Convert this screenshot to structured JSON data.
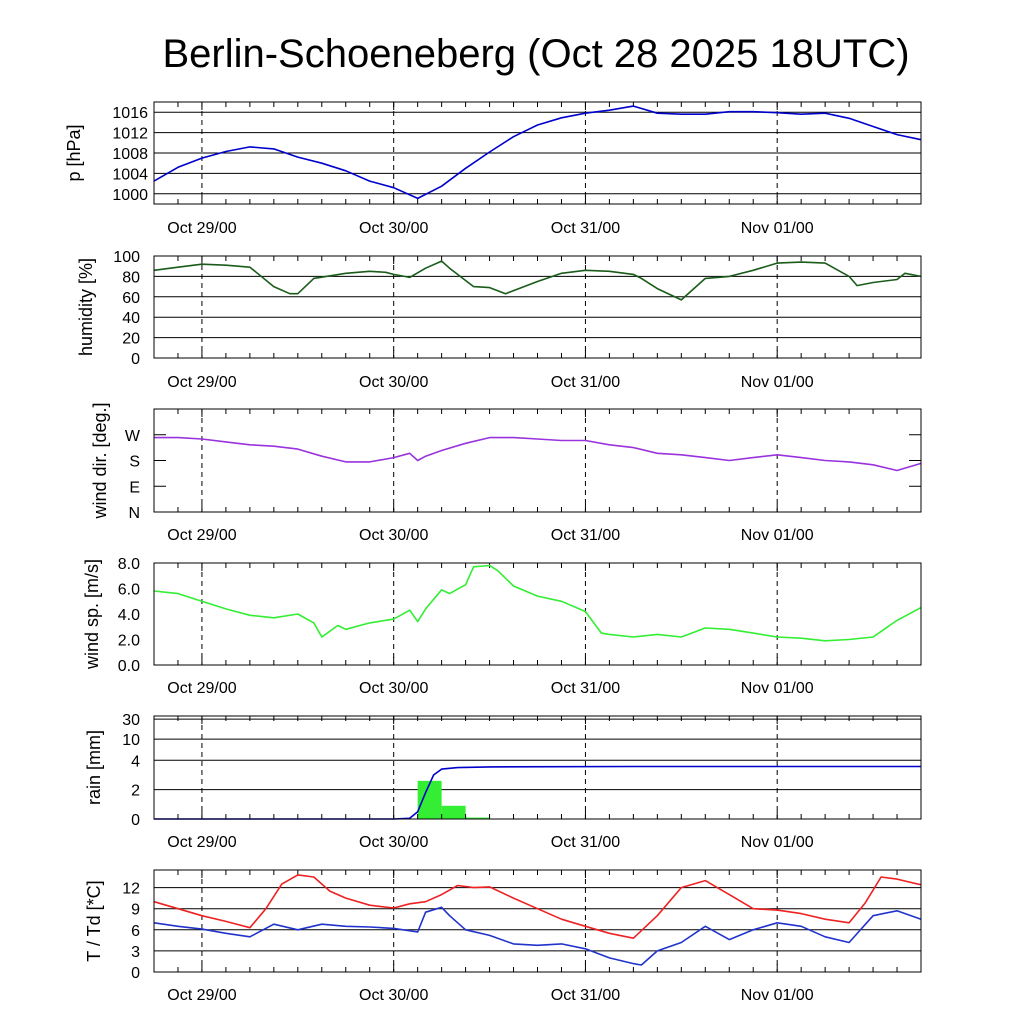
{
  "title": "Berlin-Schoeneberg (Oct 28 2025 18UTC)",
  "chart_data": {
    "type": "line",
    "time_axis": {
      "unit": "hours since Oct 28 18UTC",
      "range": [
        0,
        96
      ],
      "major_ticks": [
        6,
        30,
        54,
        78
      ],
      "major_labels": [
        "Oct 29/00",
        "Oct 30/00",
        "Oct 31/00",
        "Nov 01/00"
      ],
      "minor_step": 3
    },
    "panels": [
      {
        "id": "pressure",
        "ylabel": "p [hPa]",
        "ylim": [
          998,
          1018
        ],
        "ticks": [
          {
            "v": 1000,
            "label": "1000"
          },
          {
            "v": 1004,
            "label": "1004"
          },
          {
            "v": 1008,
            "label": "1008"
          },
          {
            "v": 1012,
            "label": "1012"
          },
          {
            "v": 1016,
            "label": "1016"
          }
        ],
        "series": [
          {
            "name": "pressure",
            "color": "#0000cc",
            "x": [
              0,
              3,
              6,
              9,
              12,
              15,
              18,
              21,
              24,
              27,
              30,
              33,
              36,
              39,
              42,
              45,
              48,
              51,
              54,
              57,
              60,
              63,
              66,
              69,
              72,
              75,
              78,
              81,
              84,
              87,
              90,
              93,
              96
            ],
            "values": [
              1002.5,
              1005.2,
              1007,
              1008.3,
              1009.2,
              1008.8,
              1007.2,
              1006,
              1004.5,
              1002.5,
              1001.2,
              999.1,
              1001.5,
              1005,
              1008.2,
              1011.2,
              1013.5,
              1014.9,
              1015.8,
              1016.4,
              1017.2,
              1015.8,
              1015.6,
              1015.6,
              1016.1,
              1016.1,
              1015.9,
              1015.6,
              1015.8,
              1014.8,
              1013.2,
              1011.6,
              1010.6
            ]
          }
        ]
      },
      {
        "id": "humidity",
        "ylabel": "humidity [%]",
        "ylim": [
          0,
          100
        ],
        "ticks": [
          {
            "v": 0,
            "label": "0"
          },
          {
            "v": 20,
            "label": "20"
          },
          {
            "v": 40,
            "label": "40"
          },
          {
            "v": 60,
            "label": "60"
          },
          {
            "v": 80,
            "label": "80"
          },
          {
            "v": 100,
            "label": "100"
          }
        ],
        "series": [
          {
            "name": "humidity",
            "color": "#1a5c1a",
            "x": [
              0,
              3,
              6,
              9,
              12,
              15,
              17,
              18,
              20,
              24,
              27,
              29,
              30,
              32,
              34,
              36,
              37,
              40,
              42,
              44,
              48,
              51,
              54,
              57,
              60,
              61,
              63,
              66,
              69,
              72,
              75,
              78,
              81,
              84,
              87,
              88,
              90,
              93,
              94,
              96
            ],
            "values": [
              86,
              89,
              92,
              91,
              89,
              70,
              63,
              63,
              78,
              83,
              85,
              84,
              82,
              79,
              88,
              95,
              88,
              70,
              69,
              63,
              75,
              83,
              86,
              85,
              82,
              78,
              68,
              57,
              78,
              80,
              86,
              93,
              94,
              93,
              80,
              71,
              74,
              77,
              83,
              80
            ]
          }
        ]
      },
      {
        "id": "wind_direction",
        "ylabel": "wind dir. [deg.]",
        "ylim": [
          0,
          360
        ],
        "ticks": [
          {
            "v": 0,
            "label": "N"
          },
          {
            "v": 90,
            "label": "E"
          },
          {
            "v": 180,
            "label": "S"
          },
          {
            "v": 270,
            "label": "W"
          }
        ],
        "series": [
          {
            "name": "wind direction",
            "color": "#9933dd",
            "x": [
              0,
              3,
              6,
              9,
              12,
              15,
              18,
              21,
              24,
              27,
              30,
              32,
              33,
              34,
              36,
              39,
              42,
              45,
              48,
              51,
              54,
              57,
              60,
              63,
              66,
              69,
              72,
              75,
              78,
              81,
              84,
              87,
              90,
              93,
              96
            ],
            "values": [
              260,
              260,
              255,
              245,
              235,
              230,
              220,
              195,
              175,
              175,
              190,
              205,
              180,
              195,
              215,
              240,
              260,
              260,
              255,
              250,
              250,
              235,
              225,
              205,
              200,
              190,
              180,
              190,
              200,
              190,
              180,
              175,
              165,
              145,
              170
            ]
          }
        ]
      },
      {
        "id": "wind_speed",
        "ylabel": "wind sp. [m/s]",
        "ylim": [
          0,
          8.0
        ],
        "ticks": [
          {
            "v": 0,
            "label": "0.0"
          },
          {
            "v": 2,
            "label": "2.0"
          },
          {
            "v": 4,
            "label": "4.0"
          },
          {
            "v": 6,
            "label": "6.0"
          },
          {
            "v": 8,
            "label": "8.0"
          }
        ],
        "series": [
          {
            "name": "wind speed",
            "color": "#33ee33",
            "x": [
              0,
              3,
              6,
              9,
              12,
              15,
              18,
              20,
              21,
              23,
              24,
              27,
              30,
              32,
              33,
              34,
              36,
              37,
              39,
              40,
              42,
              43,
              45,
              48,
              51,
              54,
              56,
              57,
              60,
              63,
              66,
              69,
              72,
              75,
              78,
              81,
              84,
              87,
              90,
              93,
              96
            ],
            "values": [
              5.8,
              5.6,
              5.0,
              4.4,
              3.9,
              3.7,
              4.0,
              3.3,
              2.2,
              3.1,
              2.8,
              3.3,
              3.6,
              4.3,
              3.4,
              4.4,
              5.9,
              5.6,
              6.3,
              7.7,
              7.8,
              7.4,
              6.2,
              5.4,
              5.0,
              4.2,
              2.5,
              2.4,
              2.2,
              2.4,
              2.2,
              2.9,
              2.8,
              2.5,
              2.2,
              2.1,
              1.9,
              2.0,
              2.2,
              3.5,
              4.5
            ]
          }
        ]
      },
      {
        "id": "rain",
        "ylabel": "rain [mm]",
        "ticks": [
          {
            "v": 0,
            "label": "0"
          },
          {
            "v": 2,
            "label": "2"
          },
          {
            "v": 4,
            "label": "4"
          },
          {
            "v": 10,
            "label": "10"
          },
          {
            "v": 30,
            "label": "30"
          }
        ],
        "scale": "nonlinear (0-4 linear, 4-30 logarithmic)",
        "bars": {
          "name": "hourly rain",
          "color": "#33ee33",
          "x_start": [
            33,
            36,
            39
          ],
          "x_end": [
            36,
            39,
            42
          ],
          "values": [
            2.6,
            0.9,
            0.1
          ]
        },
        "series": [
          {
            "name": "accumulated rain",
            "color": "#0000cc",
            "x": [
              0,
              30,
              32,
              33,
              34,
              35,
              36,
              38,
              42,
              60,
              96
            ],
            "values": [
              0,
              0,
              0.05,
              0.5,
              1.8,
              3.0,
              3.4,
              3.5,
              3.55,
              3.58,
              3.58
            ]
          }
        ]
      },
      {
        "id": "temperature",
        "ylabel": "T / Td [*C]",
        "ylim": [
          0,
          14.5
        ],
        "ticks": [
          {
            "v": 0,
            "label": "0"
          },
          {
            "v": 3,
            "label": "3"
          },
          {
            "v": 6,
            "label": "6"
          },
          {
            "v": 9,
            "label": "9"
          },
          {
            "v": 12,
            "label": "12"
          }
        ],
        "series": [
          {
            "name": "T",
            "color": "#ee2222",
            "x": [
              0,
              3,
              6,
              9,
              12,
              14,
              16,
              18,
              20,
              22,
              24,
              27,
              30,
              32,
              34,
              36,
              38,
              40,
              42,
              45,
              48,
              51,
              54,
              57,
              60,
              63,
              66,
              69,
              72,
              75,
              78,
              81,
              84,
              87,
              89,
              91,
              93,
              96
            ],
            "values": [
              10,
              9,
              8,
              7.2,
              6.3,
              9,
              12.5,
              13.8,
              13.5,
              11.5,
              10.5,
              9.5,
              9.1,
              9.7,
              10,
              11,
              12.3,
              12,
              12.1,
              10.5,
              9,
              7.5,
              6.5,
              5.5,
              4.8,
              8,
              12,
              13,
              11,
              9,
              8.8,
              8.3,
              7.5,
              7,
              9.8,
              13.5,
              13.2,
              12.4
            ]
          },
          {
            "name": "Td",
            "color": "#2233cc",
            "x": [
              0,
              3,
              6,
              9,
              12,
              15,
              18,
              21,
              24,
              27,
              30,
              33,
              34,
              36,
              37,
              39,
              42,
              45,
              48,
              51,
              54,
              57,
              60,
              61,
              63,
              66,
              69,
              72,
              75,
              78,
              81,
              84,
              87,
              90,
              93,
              96
            ],
            "values": [
              7,
              6.5,
              6.1,
              5.5,
              5.0,
              6.8,
              6.0,
              6.8,
              6.5,
              6.4,
              6.2,
              5.7,
              8.5,
              9.2,
              8.0,
              6.0,
              5.2,
              4.0,
              3.8,
              4.0,
              3.3,
              2.0,
              1.2,
              1.0,
              3.0,
              4.2,
              6.5,
              4.6,
              6.0,
              7.0,
              6.5,
              5.0,
              4.2,
              8.0,
              8.7,
              7.5
            ]
          }
        ]
      }
    ]
  }
}
